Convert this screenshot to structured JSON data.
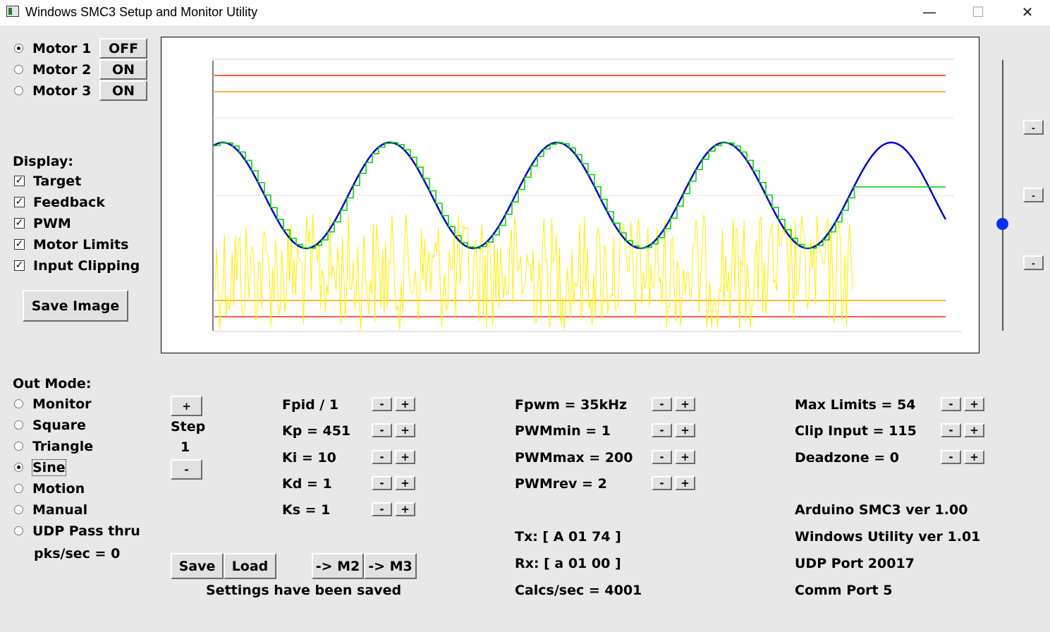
{
  "window": {
    "title": "Windows SMC3 Setup and Monitor Utility",
    "minimize": "—",
    "maximize": "☐",
    "close": "✕"
  },
  "motors": [
    {
      "label": "Motor 1",
      "state": "OFF",
      "selected": true
    },
    {
      "label": "Motor 2",
      "state": "ON",
      "selected": false
    },
    {
      "label": "Motor 3",
      "state": "ON",
      "selected": false
    }
  ],
  "display": {
    "heading": "Display:",
    "options": [
      {
        "label": "Target",
        "checked": true
      },
      {
        "label": "Feedback",
        "checked": true
      },
      {
        "label": "PWM",
        "checked": true
      },
      {
        "label": "Motor Limits",
        "checked": true
      },
      {
        "label": "Input Clipping",
        "checked": true
      }
    ],
    "save_image": "Save Image"
  },
  "out_mode": {
    "heading": "Out Mode:",
    "options": [
      {
        "label": "Monitor",
        "selected": false
      },
      {
        "label": "Square",
        "selected": false
      },
      {
        "label": "Triangle",
        "selected": false
      },
      {
        "label": "Sine",
        "selected": true
      },
      {
        "label": "Motion",
        "selected": false
      },
      {
        "label": "Manual",
        "selected": false
      },
      {
        "label": "UDP Pass thru",
        "selected": false
      }
    ],
    "pks": "pks/sec = 0"
  },
  "step": {
    "plus": "+",
    "label": "Step",
    "value": "1",
    "minus": "-"
  },
  "pid": [
    {
      "label": "Fpid / 1"
    },
    {
      "label": "Kp = 451"
    },
    {
      "label": "Ki = 10"
    },
    {
      "label": "Kd = 1"
    },
    {
      "label": "Ks = 1"
    }
  ],
  "pwm": [
    {
      "label": "Fpwm = 35kHz"
    },
    {
      "label": "PWMmin = 1"
    },
    {
      "label": "PWMmax = 200"
    },
    {
      "label": "PWMrev = 2"
    }
  ],
  "limits": [
    {
      "label": "Max Limits = 54"
    },
    {
      "label": "Clip Input = 115"
    },
    {
      "label": "Deadzone = 0"
    }
  ],
  "adjust": {
    "minus": "-",
    "plus": "+"
  },
  "comm": {
    "tx": "Tx: [ A 01 74 ]",
    "rx": "Rx: [ a 01 00 ]",
    "calcs": "Calcs/sec = 4001"
  },
  "info": {
    "arduino": "Arduino SMC3 ver 1.00",
    "windows": "Windows Utility ver 1.01",
    "udp": "UDP Port 20017",
    "comport": "Comm Port 5"
  },
  "buttons": {
    "save": "Save",
    "load": "Load",
    "to_m2": "-> M2",
    "to_m3": "-> M3"
  },
  "status": "Settings have been saved",
  "colors": {
    "limit_outer": "#ff2a00",
    "limit_inner": "#ff9900",
    "target": "#00e0e0",
    "feedback": "#00cc00",
    "position": "#0000cc",
    "pwm": "#ffee00"
  },
  "chart_data": {
    "type": "line",
    "series": [
      {
        "values": [
          0.72,
          -0.62,
          0.72,
          -0.62,
          0.72,
          -0.62,
          0.72,
          -0.62,
          0.72,
          -0.1
        ]
      },
      {
        "values": [
          0.72,
          -0.62,
          0.72,
          -0.62,
          0.72,
          -0.62,
          0.72,
          -0.62,
          0.72,
          -0.1
        ]
      },
      {
        "values": [
          0.72,
          -0.62,
          0.72,
          -0.62,
          0.72,
          -0.62,
          0.72,
          -0.62,
          0.72,
          -0.1
        ]
      }
    ]
  }
}
